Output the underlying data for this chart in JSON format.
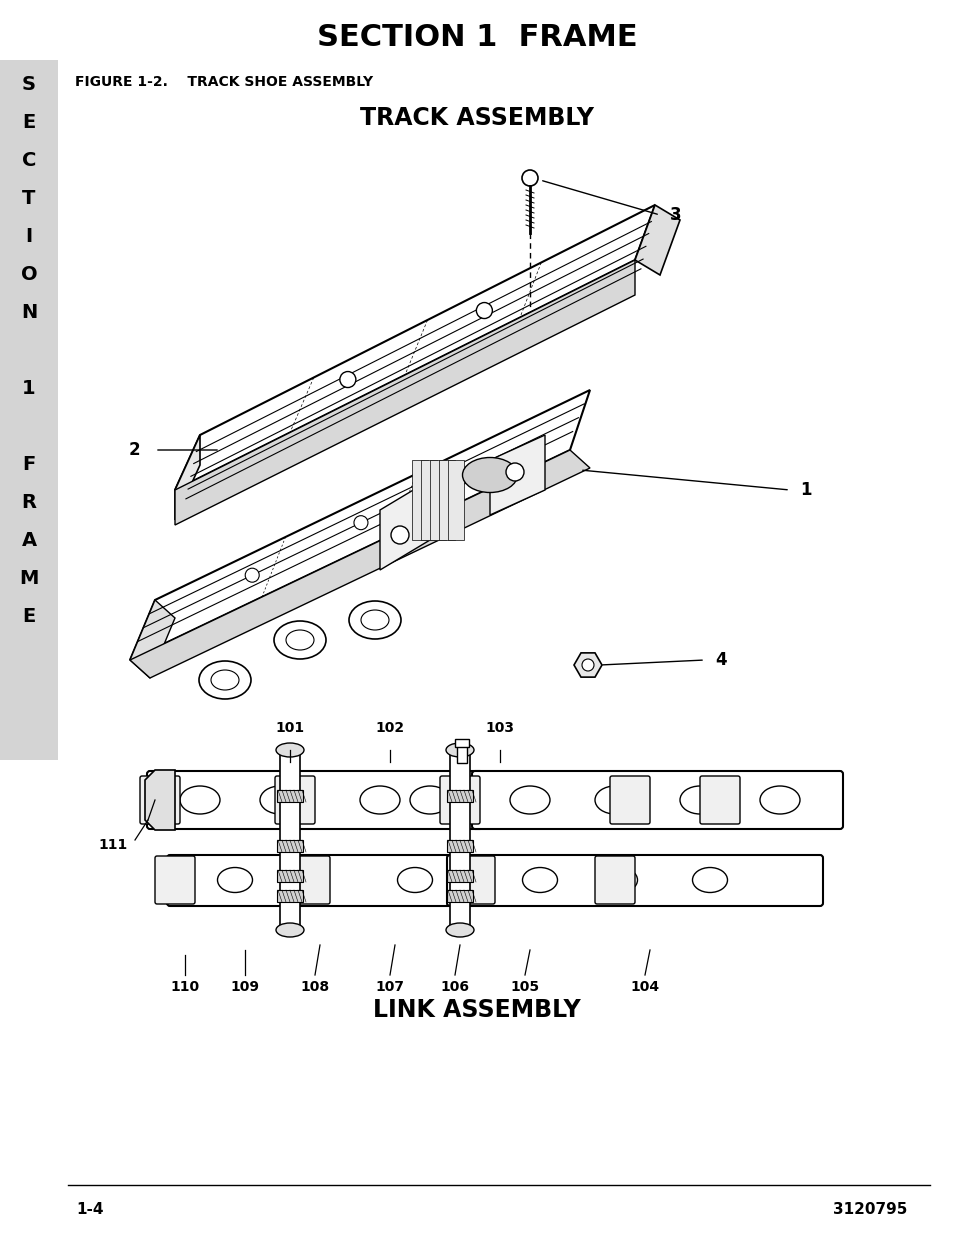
{
  "page_title": "SECTION 1  FRAME",
  "figure_label": "FIGURE 1-2.    TRACK SHOE ASSEMBLY",
  "top_diagram_title": "TRACK ASSEMBLY",
  "bottom_diagram_title": "LINK ASSEMBLY",
  "page_number_left": "1-4",
  "page_number_right": "3120795",
  "sidebar_bg": "#d4d4d4",
  "page_bg": "#ffffff",
  "sidebar_chars": [
    "S",
    "E",
    "C",
    "T",
    "I",
    "O",
    "N",
    " ",
    "1",
    " ",
    "F",
    "R",
    "A",
    "M",
    "E"
  ]
}
